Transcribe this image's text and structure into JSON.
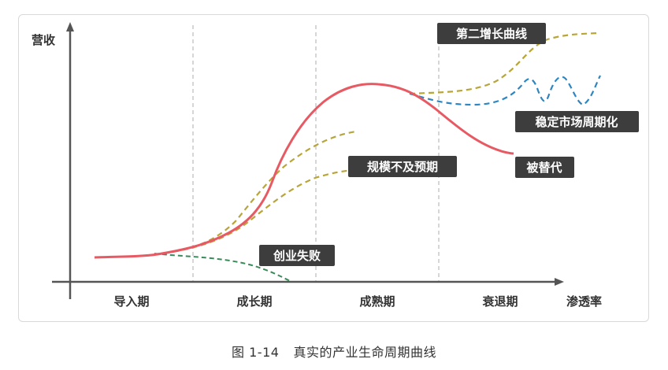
{
  "axes": {
    "y_label": "营收",
    "x_label": "渗透率"
  },
  "phases": [
    "导入期",
    "成长期",
    "成熟期",
    "衰退期"
  ],
  "curve_labels": {
    "second_growth": "第二增长曲线",
    "stable_cycle": "稳定市场周期化",
    "below_expectation": "规模不及预期",
    "replaced": "被替代",
    "startup_failure": "创业失败"
  },
  "caption": {
    "figure_number": "图 1-14",
    "title": "真实的产业生命周期曲线"
  },
  "colors": {
    "main_curve": "#e85a63",
    "second_growth": "#b8a53a",
    "below_expectation": "#b8a53a",
    "stable_cycle": "#2e86c1",
    "startup_failure": "#3a8a5a",
    "axis": "#555555",
    "phase_divider": "#c8c8c8",
    "label_bg": "#3d3d3d"
  }
}
